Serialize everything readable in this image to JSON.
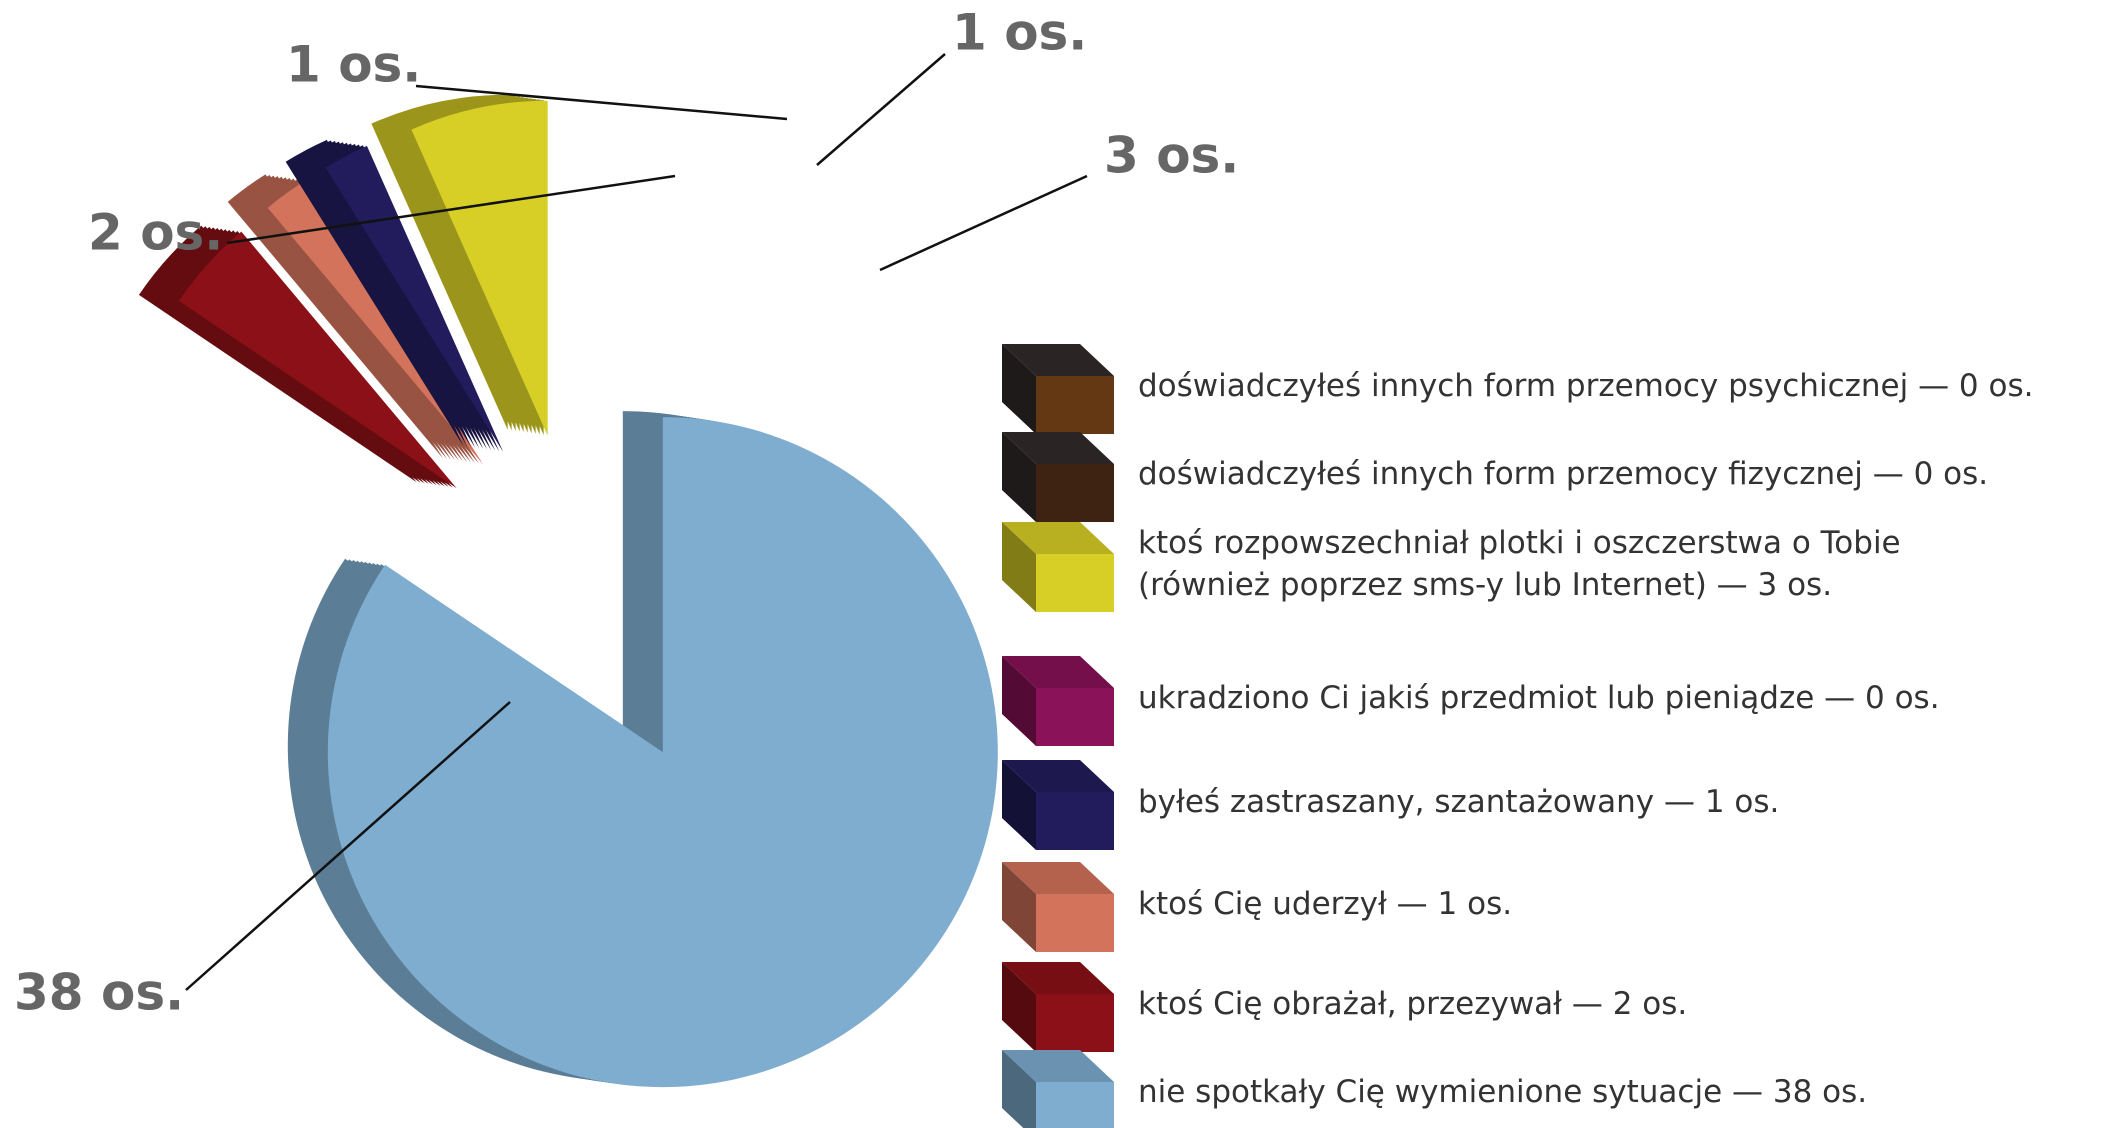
{
  "chart_data": {
    "type": "pie",
    "categories": [
      "doświadczyłeś innych form przemocy psychicznej — 0 os.",
      "doświadczyłeś innych form przemocy fizycznej — 0 os.",
      "ktoś rozpowszechniał plotki i oszczerstwa o Tobie\n(również poprzez sms-y lub Internet)  — 3 os.",
      "ukradziono Ci jakiś przedmiot lub pieniądze  — 0 os.",
      "byłeś zastraszany, szantażowany  — 1 os.",
      "ktoś Cię uderzył  — 1 os.",
      "ktoś Cię obrażał, przezywał  — 2 os.",
      "nie spotkały Cię wymienione sytuacje  — 38 os."
    ],
    "values": [
      0,
      0,
      3,
      0,
      1,
      1,
      2,
      38
    ],
    "value_labels": [
      null,
      null,
      "3 os.",
      null,
      "1 os.",
      "1 os.",
      "2 os.",
      "38 os."
    ],
    "colors": [
      "#643812",
      "#3e2312",
      "#d8cf26",
      "#8a1258",
      "#221c5c",
      "#d4735c",
      "#8c1018",
      "#7eadd0"
    ]
  }
}
